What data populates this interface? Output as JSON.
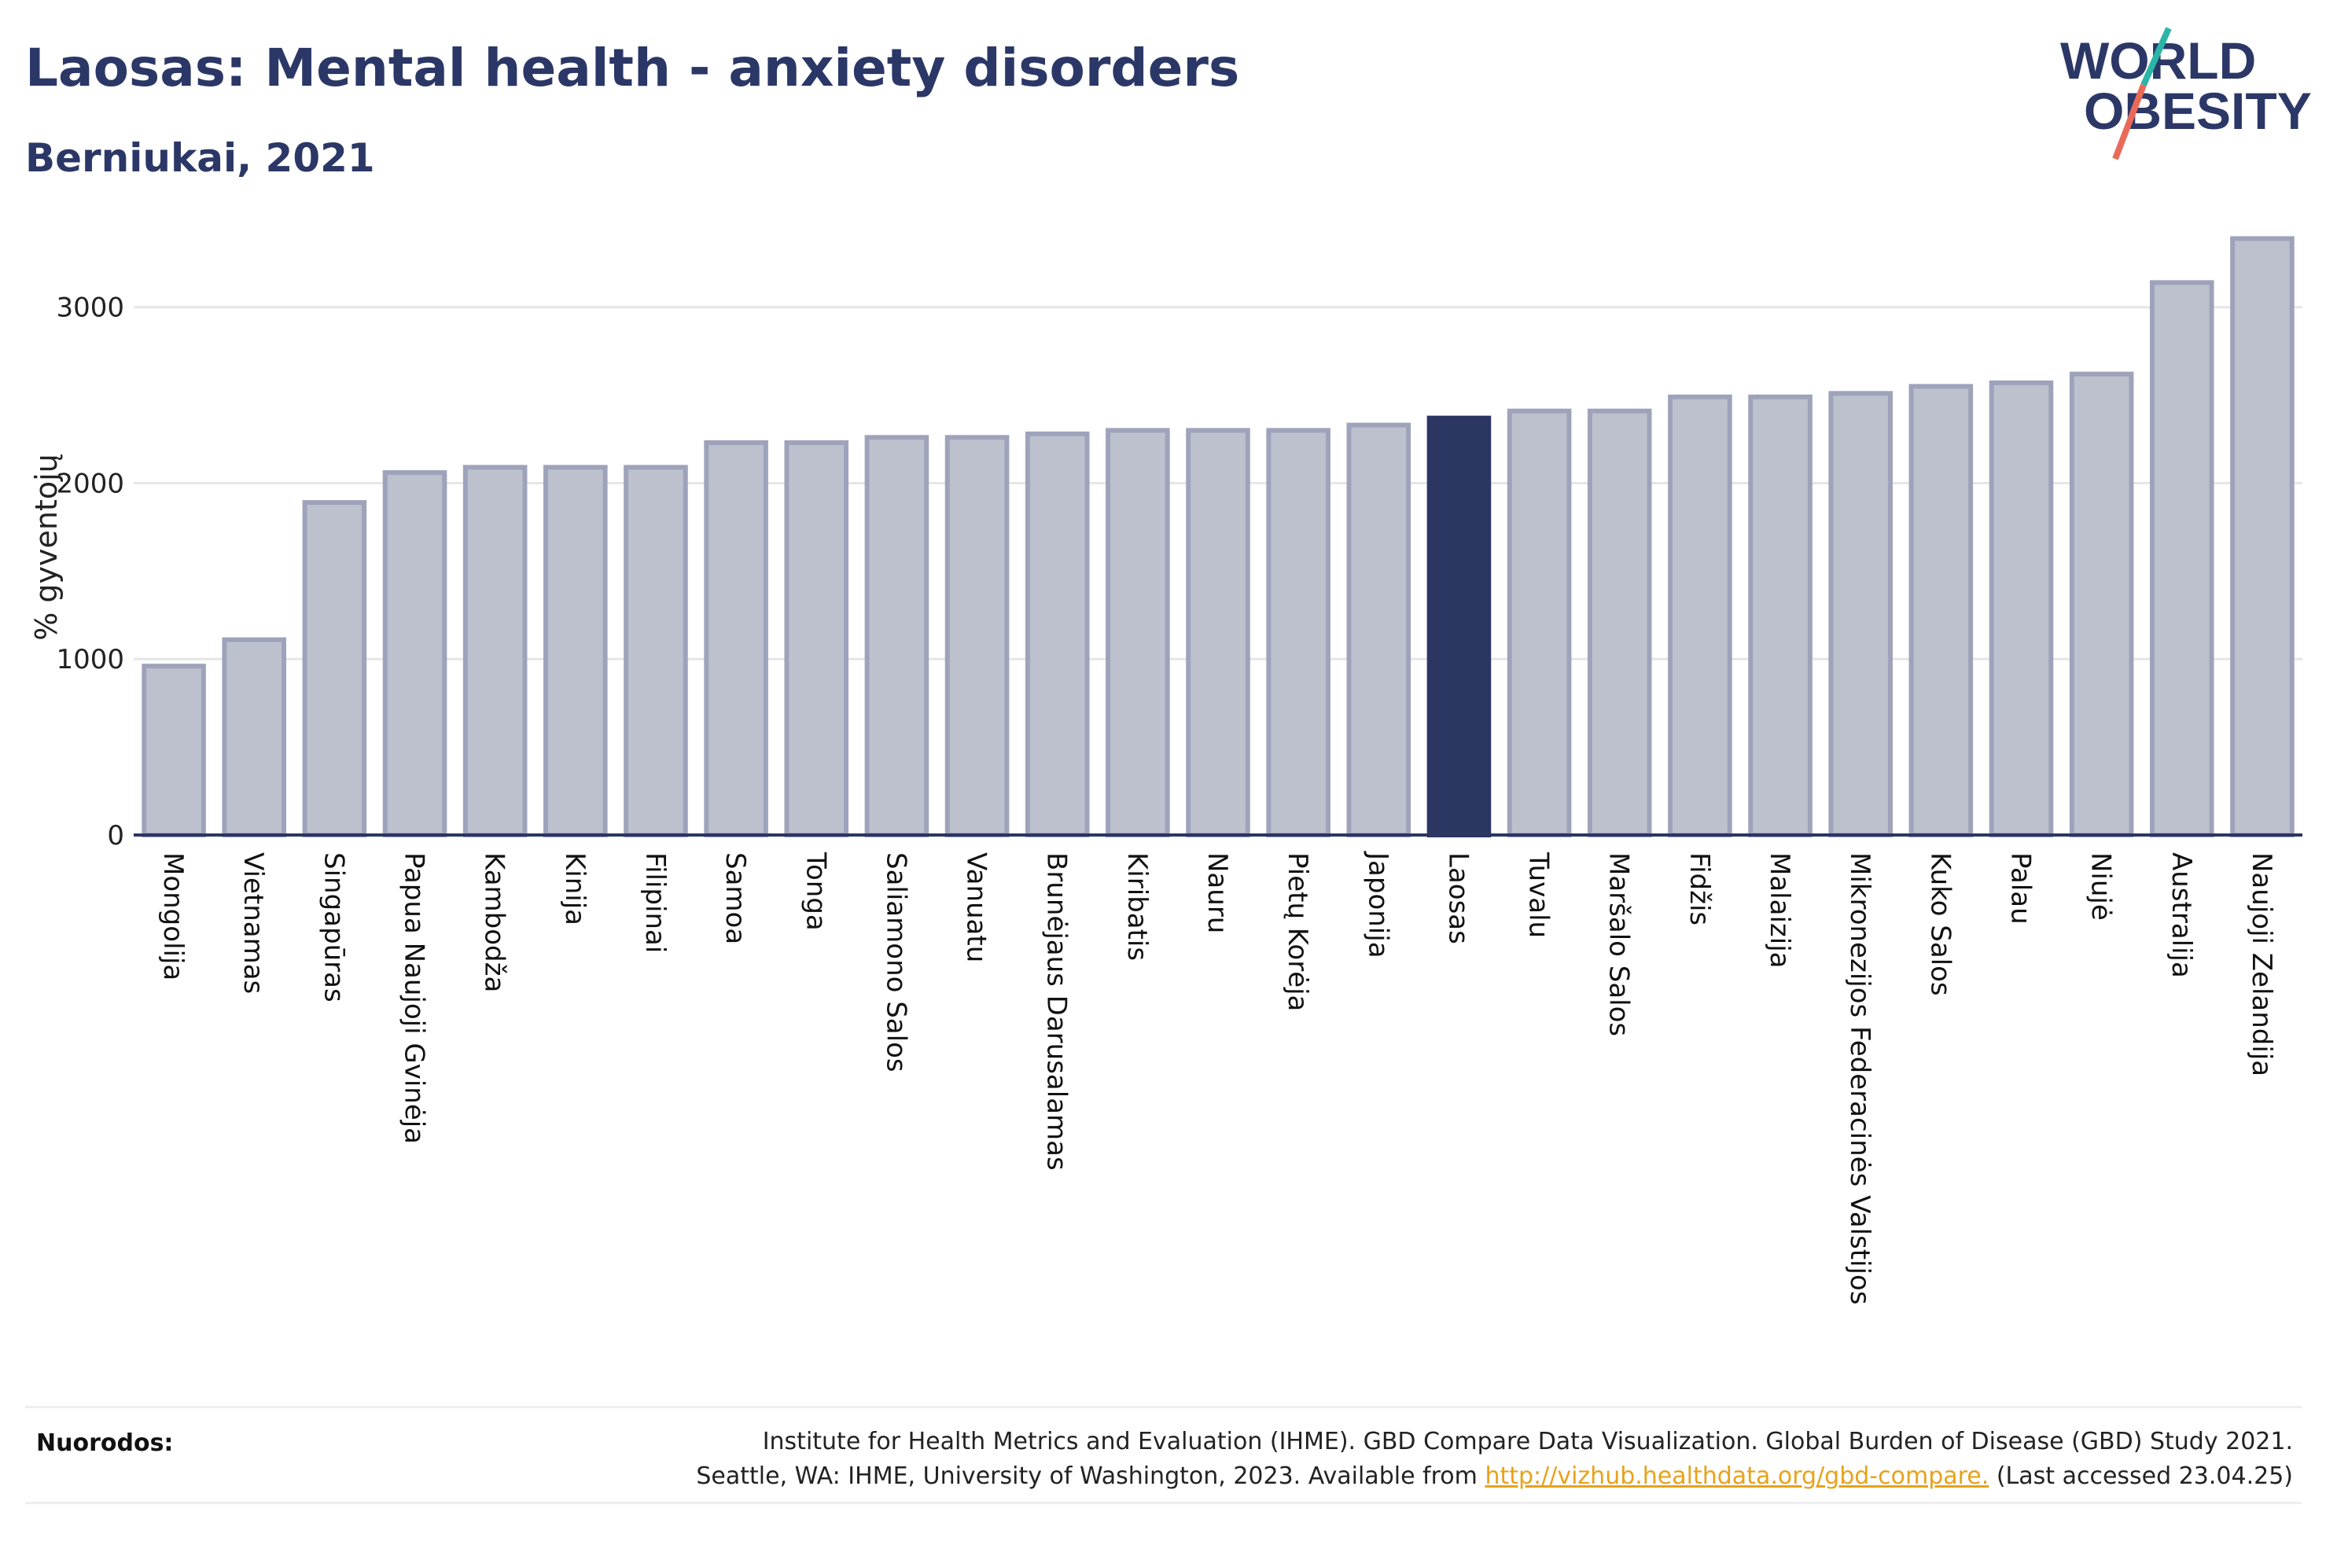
{
  "header": {
    "title": "Laosas: Mental health - anxiety disorders",
    "subtitle": "Berniukai, 2021"
  },
  "logo": {
    "line1": "WORLD",
    "line2": "OBESITY",
    "colors": {
      "text": "#2b3766",
      "slash_teal": "#2bb5a8",
      "slash_coral": "#ea6a5a"
    }
  },
  "chart_data": {
    "type": "bar",
    "ylabel": "% gyventojų",
    "xlabel": "",
    "ylim": [
      0,
      3450
    ],
    "yticks": [
      0,
      1000,
      2000,
      3000
    ],
    "grid": true,
    "highlight": "Laosas",
    "colors": {
      "bar": "#bdc1ce",
      "bar_border": "#9ea3bb",
      "highlight": "#2b3662",
      "axis": "#2b3662",
      "grid": "#e6e6e6"
    },
    "categories": [
      "Mongolija",
      "Vietnamas",
      "Singapūras",
      "Papua Naujoji Gvinėja",
      "Kambodža",
      "Kinija",
      "Filipinai",
      "Samoa",
      "Tonga",
      "Saliamono Salos",
      "Vanuatu",
      "Brunėjaus Darusalamas",
      "Kiribatis",
      "Nauru",
      "Pietų Korėja",
      "Japonija",
      "Laosas",
      "Tuvalu",
      "Maršalo Salos",
      "Fidžis",
      "Malaizija",
      "Mikronezijos Federacinės Valstijos",
      "Kuko Salos",
      "Palau",
      "Niujė",
      "Australija",
      "Naujoji Zelandija"
    ],
    "values": [
      960,
      1110,
      1890,
      2060,
      2090,
      2090,
      2090,
      2230,
      2230,
      2260,
      2260,
      2280,
      2300,
      2300,
      2300,
      2330,
      2370,
      2410,
      2410,
      2490,
      2490,
      2510,
      2550,
      2570,
      2620,
      3140,
      3390
    ]
  },
  "references": {
    "label": "Nuorodos:",
    "line1": "Institute for Health Metrics and Evaluation (IHME). GBD Compare Data Visualization. Global Burden of Disease (GBD) Study 2021.",
    "line2_before": "Seattle, WA: IHME, University of Washington, 2023. Available from",
    "link": "http://vizhub.healthdata.org/gbd-compare.",
    "line2_after": "(Last accessed 23.04.25)"
  }
}
